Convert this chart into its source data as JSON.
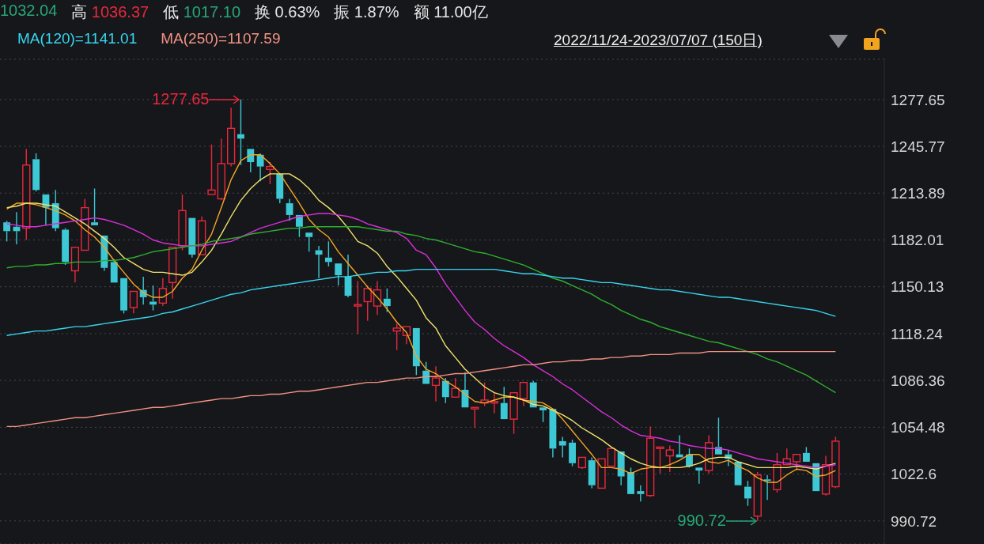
{
  "chart_data": {
    "type": "candlestick",
    "categories": [
      null,
      null,
      null,
      null,
      null,
      null,
      null,
      null,
      null,
      null,
      null,
      null,
      null,
      null,
      null,
      null,
      null,
      null,
      null,
      null,
      null,
      null,
      null,
      null,
      null,
      null,
      null,
      null,
      null,
      null,
      null,
      null,
      null,
      null,
      null,
      null,
      null,
      null,
      null,
      null,
      null,
      null,
      null,
      null,
      null,
      null,
      null,
      null,
      null,
      null,
      null,
      null,
      null,
      null,
      null,
      null,
      null,
      null,
      null,
      null,
      null,
      null,
      null,
      null,
      null,
      null,
      null,
      null,
      null,
      null,
      null,
      null,
      null,
      null,
      null,
      null,
      null,
      null,
      null,
      null,
      null,
      null,
      null,
      null,
      null,
      null
    ],
    "ohlc": [
      [
        1194,
        1195,
        1181,
        1188
      ],
      [
        1191,
        1201,
        1179,
        1188
      ],
      [
        1190,
        1244,
        1182,
        1233
      ],
      [
        1237,
        1241,
        1215,
        1216
      ],
      [
        1213,
        1213,
        1192,
        1204
      ],
      [
        1207,
        1216,
        1188,
        1190
      ],
      [
        1189,
        1190,
        1165,
        1167
      ],
      [
        1161,
        1177,
        1153,
        1177
      ],
      [
        1175,
        1210,
        1175,
        1204
      ],
      [
        1194,
        1217,
        1192,
        1192
      ],
      [
        1185,
        1185,
        1161,
        1163
      ],
      [
        1167,
        1169,
        1153,
        1153
      ],
      [
        1156,
        1156,
        1132,
        1134
      ],
      [
        1136,
        1147,
        1132,
        1147
      ],
      [
        1148,
        1157,
        1138,
        1143
      ],
      [
        1140,
        1151,
        1134,
        1138
      ],
      [
        1139,
        1156,
        1137,
        1149
      ],
      [
        1153,
        1177,
        1142,
        1177
      ],
      [
        1178,
        1213,
        1175,
        1202
      ],
      [
        1197,
        1197,
        1170,
        1172
      ],
      [
        1172,
        1198,
        1172,
        1195
      ],
      [
        1213,
        1247,
        1213,
        1216
      ],
      [
        1210,
        1251,
        1209,
        1234
      ],
      [
        1234,
        1272,
        1232,
        1258
      ],
      [
        1254,
        1277.65,
        1233,
        1251
      ],
      [
        1244,
        1244,
        1228,
        1235
      ],
      [
        1240,
        1241,
        1222,
        1232
      ],
      [
        1230,
        1235,
        1220,
        1232
      ],
      [
        1227,
        1227,
        1207,
        1210
      ],
      [
        1207,
        1210,
        1195,
        1199
      ],
      [
        1199,
        1199,
        1184,
        1191
      ],
      [
        1187,
        1187,
        1174,
        1184
      ],
      [
        1175,
        1178,
        1156,
        1172
      ],
      [
        1170,
        1181,
        1164,
        1167
      ],
      [
        1166,
        1166,
        1151,
        1158
      ],
      [
        1157,
        1172,
        1143,
        1144
      ],
      [
        1137,
        1154,
        1118,
        1138
      ],
      [
        1140,
        1151,
        1127,
        1149
      ],
      [
        1137,
        1154,
        1131,
        1148
      ],
      [
        1142,
        1149,
        1133,
        1137
      ],
      [
        1120,
        1125,
        1107,
        1122
      ],
      [
        1117,
        1123,
        1111,
        1123
      ],
      [
        1122,
        1122,
        1090,
        1096
      ],
      [
        1093,
        1099,
        1084,
        1084
      ],
      [
        1083,
        1096,
        1072,
        1088
      ],
      [
        1086,
        1088,
        1071,
        1075
      ],
      [
        1075,
        1088,
        1075,
        1081
      ],
      [
        1080,
        1092,
        1068,
        1068
      ],
      [
        1067,
        1068,
        1054,
        1068
      ],
      [
        1071,
        1085,
        1069,
        1073
      ],
      [
        1071,
        1078,
        1064,
        1072
      ],
      [
        1071,
        1082,
        1060,
        1060
      ],
      [
        1060,
        1078,
        1050,
        1078
      ],
      [
        1074,
        1085,
        1069,
        1085
      ],
      [
        1085,
        1086,
        1068,
        1068
      ],
      [
        1068,
        1068,
        1058,
        1066
      ],
      [
        1067,
        1067,
        1034,
        1040
      ],
      [
        1045,
        1048,
        1034,
        1042
      ],
      [
        1044,
        1046,
        1028,
        1030
      ],
      [
        1027,
        1034,
        1026,
        1034
      ],
      [
        1032,
        1034,
        1013,
        1015
      ],
      [
        1013,
        1033,
        1013,
        1033
      ],
      [
        1028,
        1041,
        1028,
        1040
      ],
      [
        1038,
        1038,
        1015,
        1021
      ],
      [
        1024,
        1027,
        1009,
        1009
      ],
      [
        1011,
        1015,
        1004,
        1009
      ],
      [
        1008,
        1055,
        1007,
        1047
      ],
      [
        1040,
        1041,
        1023,
        1041
      ],
      [
        1035,
        1042,
        1024,
        1039
      ],
      [
        1036,
        1049,
        1034,
        1034
      ],
      [
        1036,
        1040,
        1027,
        1028
      ],
      [
        1027,
        1027,
        1016,
        1025
      ],
      [
        1025,
        1049,
        1023,
        1044
      ],
      [
        1041,
        1061,
        1036,
        1036
      ],
      [
        1036,
        1039,
        1028,
        1033
      ],
      [
        1031,
        1031,
        1015,
        1015
      ],
      [
        1014,
        1018,
        1001,
        1006
      ],
      [
        994,
        1024,
        990.72,
        1022
      ],
      [
        1019,
        1022,
        1005,
        1018
      ],
      [
        1012,
        1037,
        1010,
        1029
      ],
      [
        1029,
        1040,
        1029,
        1033
      ],
      [
        1031,
        1036,
        1025,
        1036
      ],
      [
        1037,
        1041,
        1031,
        1031
      ],
      [
        1030,
        1030,
        1011,
        1011
      ],
      [
        1009,
        1035,
        1008,
        1029
      ],
      [
        1014,
        1048,
        1013,
        1045
      ]
    ],
    "colors": [
      "#3cc8d4",
      "#3cc8d4",
      "#e8283c",
      "#3cc8d4",
      "#3cc8d4",
      "#3cc8d4",
      "#3cc8d4",
      "#e8283c",
      "#e8283c",
      "#3cc8d4",
      "#3cc8d4",
      "#3cc8d4",
      "#3cc8d4",
      "#e8283c",
      "#3cc8d4",
      "#3cc8d4",
      "#e8283c",
      "#e8283c",
      "#e8283c",
      "#3cc8d4",
      "#e8283c",
      "#e8283c",
      "#e8283c",
      "#e8283c",
      "#3cc8d4",
      "#3cc8d4",
      "#3cc8d4",
      "#e8283c",
      "#3cc8d4",
      "#3cc8d4",
      "#3cc8d4",
      "#3cc8d4",
      "#3cc8d4",
      "#3cc8d4",
      "#3cc8d4",
      "#3cc8d4",
      "#e8283c",
      "#e8283c",
      "#e8283c",
      "#3cc8d4",
      "#e8283c",
      "#e8283c",
      "#3cc8d4",
      "#3cc8d4",
      "#e8283c",
      "#3cc8d4",
      "#e8283c",
      "#3cc8d4",
      "#e8283c",
      "#e8283c",
      "#e8283c",
      "#3cc8d4",
      "#e8283c",
      "#e8283c",
      "#3cc8d4",
      "#3cc8d4",
      "#3cc8d4",
      "#3cc8d4",
      "#3cc8d4",
      "#e8283c",
      "#3cc8d4",
      "#e8283c",
      "#e8283c",
      "#3cc8d4",
      "#3cc8d4",
      "#3cc8d4",
      "#e8283c",
      "#e8283c",
      "#e8283c",
      "#3cc8d4",
      "#3cc8d4",
      "#3cc8d4",
      "#e8283c",
      "#3cc8d4",
      "#3cc8d4",
      "#3cc8d4",
      "#3cc8d4",
      "#e8283c",
      "#3cc8d4",
      "#e8283c",
      "#e8283c",
      "#e8283c",
      "#3cc8d4",
      "#3cc8d4",
      "#e8283c",
      "#e8283c"
    ],
    "series": [
      {
        "type": "line",
        "color": "#f5a623",
        "values": [
          1203,
          1207,
          1207,
          1206,
          1204,
          1202,
          1199,
          1195,
          1189,
          1184,
          1177,
          1168,
          1160,
          1152,
          1146,
          1143,
          1143,
          1147,
          1156,
          1162,
          1175,
          1186,
          1204,
          1223,
          1236,
          1240,
          1240,
          1234,
          1227,
          1217,
          1207,
          1196,
          1189,
          1184,
          1174,
          1166,
          1158,
          1150,
          1143,
          1135,
          1126,
          1119,
          1103,
          1094,
          1091,
          1086,
          1082,
          1077,
          1072,
          1071,
          1073,
          1075,
          1075,
          1073,
          1072,
          1071,
          1067,
          1060,
          1052,
          1044,
          1036,
          1027,
          1027,
          1026,
          1023,
          1026,
          1027,
          1027,
          1029,
          1032,
          1036,
          1036,
          1031,
          1030,
          1032,
          1028,
          1025,
          1020,
          1017,
          1017,
          1022,
          1026,
          1025,
          1021,
          1022,
          1025
        ]
      },
      {
        "type": "line",
        "color": "#f3e36b",
        "values": [
          1204,
          1205,
          1207,
          1207,
          1206,
          1205,
          1201,
          1197,
          1193,
          1188,
          1183,
          1177,
          1170,
          1166,
          1162,
          1160,
          1160,
          1159,
          1158,
          1160,
          1167,
          1175,
          1186,
          1198,
          1209,
          1217,
          1223,
          1227,
          1227,
          1227,
          1223,
          1217,
          1209,
          1204,
          1198,
          1190,
          1181,
          1178,
          1173,
          1164,
          1157,
          1149,
          1141,
          1129,
          1122,
          1110,
          1102,
          1094,
          1088,
          1082,
          1078,
          1076,
          1075,
          1073,
          1070,
          1069,
          1066,
          1063,
          1059,
          1054,
          1050,
          1046,
          1041,
          1037,
          1033,
          1030,
          1028,
          1027,
          1027,
          1027,
          1028,
          1030,
          1033,
          1034,
          1034,
          1031,
          1029,
          1027,
          1027,
          1027,
          1027,
          1028,
          1027,
          1026,
          1028,
          1030
        ]
      },
      {
        "type": "line",
        "color": "#dd2fdd",
        "values": [
          1193,
          1192,
          1191,
          1191,
          1192,
          1193,
          1194,
          1195,
          1196,
          1197,
          1196,
          1194,
          1192,
          1189,
          1186,
          1182,
          1180,
          1179,
          1178,
          1178,
          1178,
          1179,
          1180,
          1181,
          1184,
          1187,
          1190,
          1192,
          1194,
          1196,
          1198,
          1199,
          1200,
          1200,
          1199,
          1198,
          1196,
          1193,
          1191,
          1189,
          1187,
          1183,
          1175,
          1172,
          1163,
          1152,
          1143,
          1134,
          1126,
          1121,
          1115,
          1110,
          1106,
          1102,
          1097,
          1093,
          1089,
          1084,
          1080,
          1075,
          1070,
          1065,
          1061,
          1056,
          1052,
          1049,
          1048,
          1047,
          1045,
          1044,
          1042,
          1041,
          1040,
          1040,
          1039,
          1037,
          1035,
          1033,
          1032,
          1031,
          1030,
          1029,
          1028,
          1027,
          1028,
          1029
        ]
      },
      {
        "type": "line",
        "color": "#2fb02f",
        "values": [
          1163,
          1164,
          1164,
          1165,
          1165,
          1166,
          1166,
          1167,
          1167,
          1167,
          1168,
          1168,
          1169,
          1170,
          1172,
          1174,
          1175,
          1176,
          1177,
          1178,
          1179,
          1181,
          1182,
          1183,
          1184,
          1186,
          1187,
          1188,
          1189,
          1190,
          1190,
          1191,
          1191,
          1191,
          1191,
          1191,
          1191,
          1190,
          1189,
          1188,
          1188,
          1186,
          1185,
          1183,
          1182,
          1180,
          1178,
          1176,
          1174,
          1173,
          1171,
          1169,
          1167,
          1165,
          1162,
          1159,
          1156,
          1154,
          1151,
          1148,
          1145,
          1141,
          1138,
          1134,
          1131,
          1128,
          1126,
          1123,
          1121,
          1119,
          1117,
          1115,
          1113,
          1112,
          1110,
          1108,
          1106,
          1104,
          1101,
          1099,
          1096,
          1093,
          1090,
          1086,
          1082,
          1078
        ]
      },
      {
        "type": "line",
        "name": "MA(120)=1141.01",
        "color": "#38d6ef",
        "values": [
          1117,
          1118,
          1119,
          1120,
          1120,
          1121,
          1122,
          1123,
          1123,
          1124,
          1125,
          1126,
          1127,
          1128,
          1129,
          1130,
          1132,
          1133,
          1135,
          1137,
          1139,
          1141,
          1143,
          1145,
          1146,
          1148,
          1149,
          1150,
          1151,
          1152,
          1153,
          1154,
          1155,
          1156,
          1157,
          1157,
          1158,
          1159,
          1160,
          1160,
          1161,
          1161,
          1162,
          1162,
          1162,
          1162,
          1162,
          1162,
          1162,
          1162,
          1162,
          1161,
          1160,
          1159,
          1159,
          1158,
          1157,
          1156,
          1156,
          1155,
          1154,
          1153,
          1153,
          1152,
          1151,
          1150,
          1149,
          1148,
          1148,
          1147,
          1146,
          1145,
          1144,
          1143,
          1143,
          1142,
          1141,
          1140,
          1139,
          1138,
          1137,
          1136,
          1135,
          1134,
          1132,
          1130
        ]
      },
      {
        "type": "line",
        "name": "MA(250)=1107.59",
        "color": "#f29283",
        "values": [
          1055,
          1055,
          1056,
          1057,
          1058,
          1059,
          1060,
          1061,
          1061,
          1062,
          1063,
          1064,
          1065,
          1066,
          1067,
          1068,
          1068,
          1069,
          1070,
          1071,
          1072,
          1073,
          1074,
          1074,
          1075,
          1076,
          1076,
          1077,
          1077,
          1078,
          1079,
          1079,
          1080,
          1081,
          1082,
          1083,
          1084,
          1085,
          1085,
          1086,
          1087,
          1088,
          1088,
          1089,
          1089,
          1090,
          1091,
          1091,
          1092,
          1093,
          1094,
          1095,
          1096,
          1097,
          1097,
          1098,
          1099,
          1099,
          1100,
          1100,
          1101,
          1101,
          1102,
          1102,
          1103,
          1103,
          1104,
          1104,
          1104,
          1105,
          1105,
          1105,
          1106,
          1106,
          1106,
          1106,
          1106,
          1106,
          1106,
          1106,
          1106,
          1106,
          1106,
          1106,
          1106,
          1106
        ]
      }
    ],
    "ylim": [
      975,
      1305
    ],
    "yticks": [
      990.72,
      1022.6,
      1054.48,
      1086.36,
      1118.24,
      1150.13,
      1182.01,
      1213.89,
      1245.77,
      1277.65
    ],
    "grid": "y",
    "legend": "top left",
    "tick_labels": "y",
    "annotations": [
      "1032.04",
      "高 1036.37",
      "低 1017.10",
      "换 0.63%",
      "振 1.87%",
      "额 11.00亿",
      "2022/11/24-2023/07/07 (150日)",
      "1277.65",
      "990.72"
    ]
  }
}
